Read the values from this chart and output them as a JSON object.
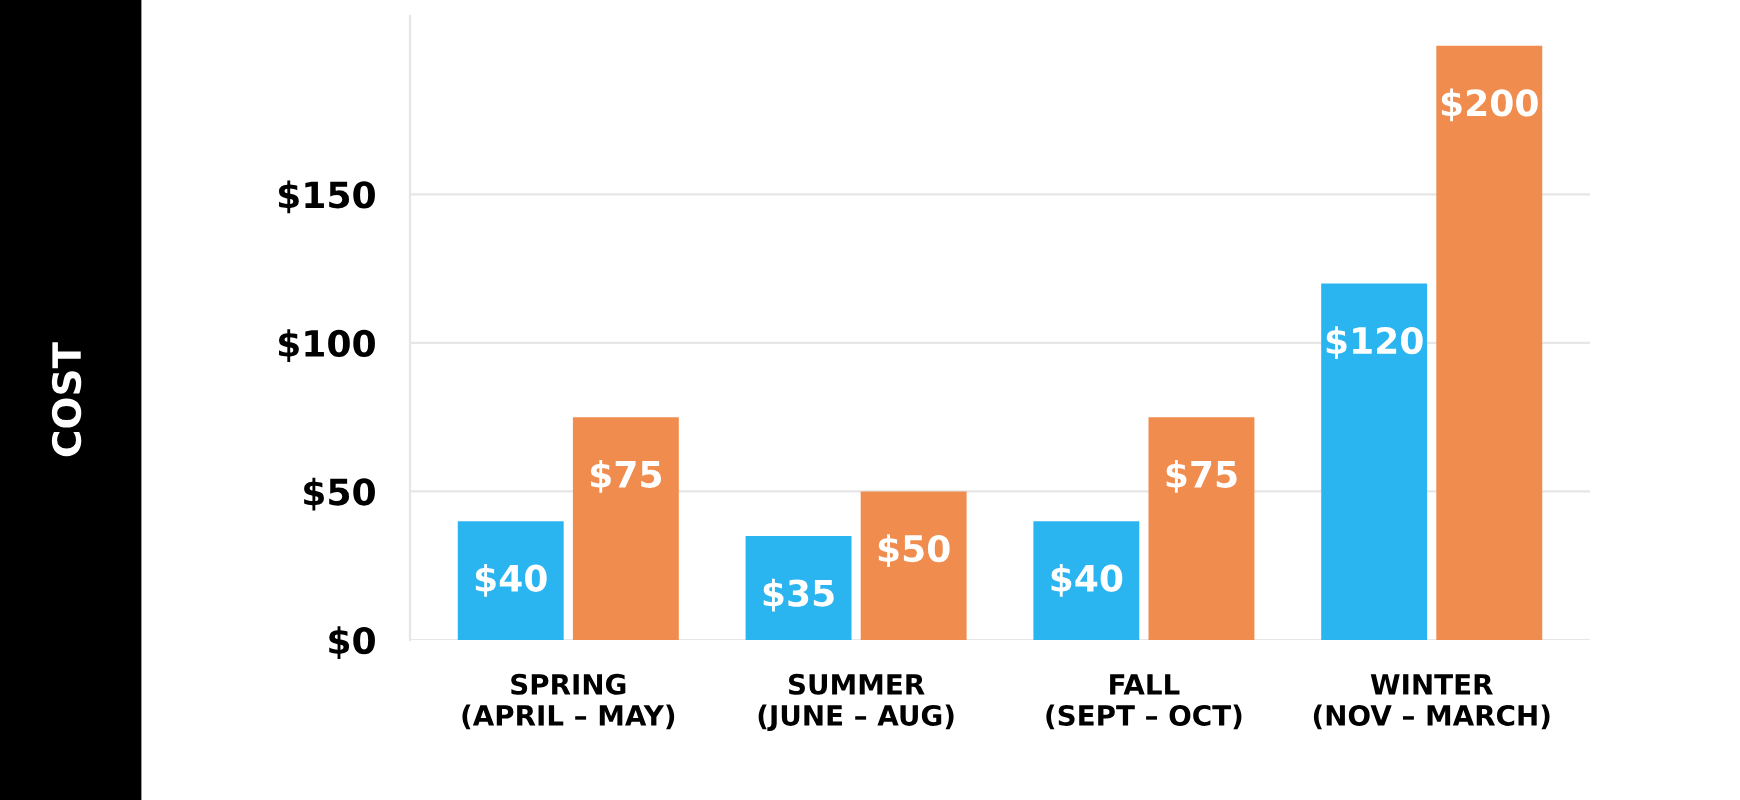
{
  "chart_data": {
    "type": "bar",
    "annotations": [
      "COST"
    ],
    "categories": [
      "SPRING\n(APRIL – MAY)",
      "SUMMER\n(JUNE – AUG)",
      "FALL\n(SEPT – OCT)",
      "WINTER\n(NOV – MARCH)"
    ],
    "series": [
      {
        "color": "#2bb5f0",
        "values": [
          40,
          35,
          40,
          120
        ],
        "value_labels": [
          "$40",
          "$35",
          "$40",
          "$120"
        ]
      },
      {
        "color": "#f08c4e",
        "values": [
          75,
          50,
          75,
          200
        ],
        "value_labels": [
          "$75",
          "$50",
          "$75",
          "$200"
        ]
      }
    ],
    "ylim": [
      0,
      210
    ],
    "yticks": [
      {
        "value": 0,
        "label": "$0"
      },
      {
        "value": 50,
        "label": "$50"
      },
      {
        "value": 100,
        "label": "$100"
      },
      {
        "value": 150,
        "label": "$150"
      }
    ],
    "grid": "y"
  }
}
